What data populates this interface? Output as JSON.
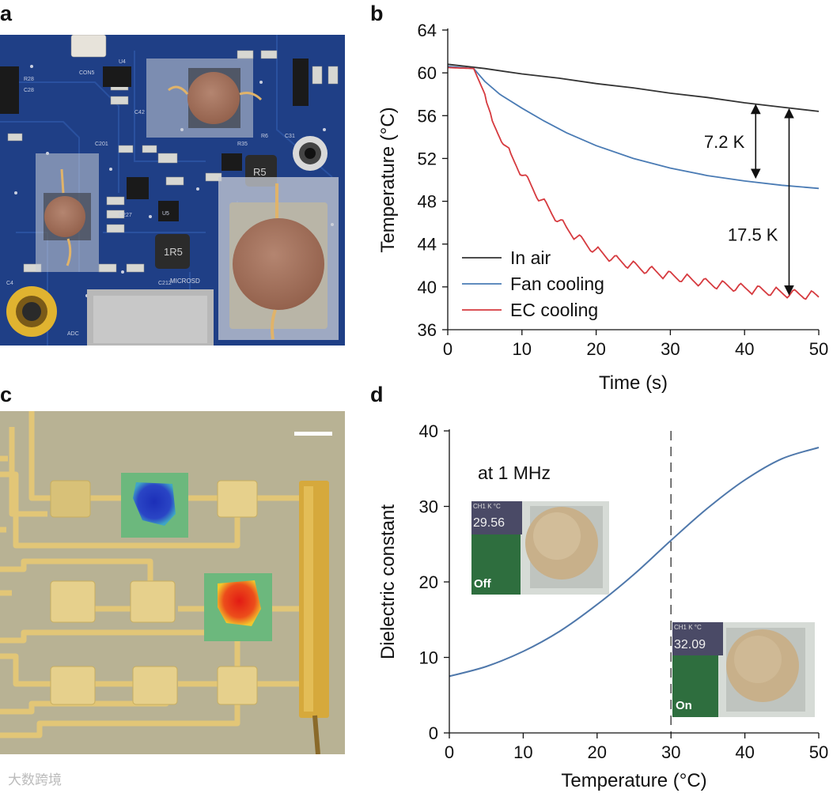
{
  "panels": {
    "a": "a",
    "b": "b",
    "c": "c",
    "d": "d"
  },
  "photo_a": {
    "pcb_labels": [
      "CON5",
      "U4",
      "R28",
      "C28",
      "C201",
      "C42",
      "C227",
      "R6",
      "1R5",
      "R5",
      "MICROSD",
      "ADC",
      "C212",
      "C4",
      "U5",
      "R35",
      "C31"
    ],
    "colors": {
      "board": "#1f3f86",
      "disk": "#a9765d",
      "film": "#c9cdd6",
      "pad": "#b9b5a7"
    }
  },
  "chart_b": {
    "type": "line",
    "xlabel": "Time (s)",
    "ylabel": "Temperature (°C)",
    "xlim": [
      0,
      50
    ],
    "ylim": [
      36,
      64
    ],
    "xticks": [
      "0",
      "10",
      "20",
      "30",
      "40",
      "50"
    ],
    "yticks": [
      "36",
      "40",
      "44",
      "48",
      "52",
      "56",
      "60",
      "64"
    ],
    "legend": {
      "position": "bottom-left"
    },
    "series": [
      {
        "name": "In air",
        "color": "#333333",
        "x": [
          0,
          5,
          10,
          15,
          20,
          25,
          30,
          35,
          40,
          45,
          50
        ],
        "y": [
          60.8,
          60.4,
          59.9,
          59.5,
          59.0,
          58.6,
          58.1,
          57.7,
          57.2,
          56.8,
          56.4
        ]
      },
      {
        "name": "Fan cooling",
        "color": "#4a7bb4",
        "x": [
          0,
          3.5,
          5,
          7,
          10,
          13,
          16,
          20,
          25,
          30,
          35,
          40,
          45,
          50
        ],
        "y": [
          60.6,
          60.4,
          59.2,
          58.0,
          56.7,
          55.5,
          54.4,
          53.2,
          52.0,
          51.1,
          50.4,
          49.9,
          49.5,
          49.2
        ]
      },
      {
        "name": "EC cooling",
        "color": "#d63a3f",
        "x": [
          0,
          3.5,
          5,
          6,
          7.5,
          8.5,
          10,
          12,
          14,
          16,
          18,
          20,
          23,
          26,
          30,
          35,
          40,
          45,
          50
        ],
        "y": [
          60.5,
          60.4,
          58.0,
          55.0,
          53.5,
          52.0,
          50.5,
          48.5,
          46.8,
          45.3,
          44.2,
          43.2,
          42.3,
          41.6,
          40.9,
          40.2,
          39.7,
          39.3,
          39.0
        ]
      }
    ],
    "annotations": [
      {
        "text": "7.2 K",
        "x": 41.5,
        "y_top": 57.0,
        "y_bottom": 50.2
      },
      {
        "text": "17.5 K",
        "x": 46.0,
        "y_top": 56.6,
        "y_bottom": 39.3
      }
    ]
  },
  "photo_c": {
    "colors": {
      "substrate": "#b8b294",
      "trace": "#e2c677",
      "pad": "#e6d08c",
      "busbar": "#d6a93c",
      "cool_spot": "#2a45c5",
      "hot_spot": "#e63320",
      "map_bg": "#66b07a"
    }
  },
  "chart_d": {
    "type": "line",
    "xlabel": "Temperature (°C)",
    "ylabel": "Dielectric constant",
    "xlim": [
      0,
      50
    ],
    "ylim": [
      0,
      40
    ],
    "xticks": [
      "0",
      "10",
      "20",
      "30",
      "40",
      "50"
    ],
    "yticks": [
      "0",
      "10",
      "20",
      "30",
      "40"
    ],
    "annotation": "at 1 MHz",
    "vline_x": 30,
    "series": [
      {
        "color": "#4f78ab",
        "x": [
          0,
          5,
          10,
          15,
          20,
          25,
          30,
          35,
          40,
          45,
          50
        ],
        "y": [
          7.5,
          8.8,
          10.8,
          13.5,
          17.0,
          21.0,
          25.5,
          29.8,
          33.5,
          36.3,
          37.8
        ]
      }
    ],
    "insets": [
      {
        "reading": "29.56",
        "channel": "CH1  K  °C",
        "state": "Off"
      },
      {
        "reading": "32.09",
        "channel": "CH1  K  °C",
        "state": "On"
      }
    ]
  },
  "watermark": "大数跨境"
}
